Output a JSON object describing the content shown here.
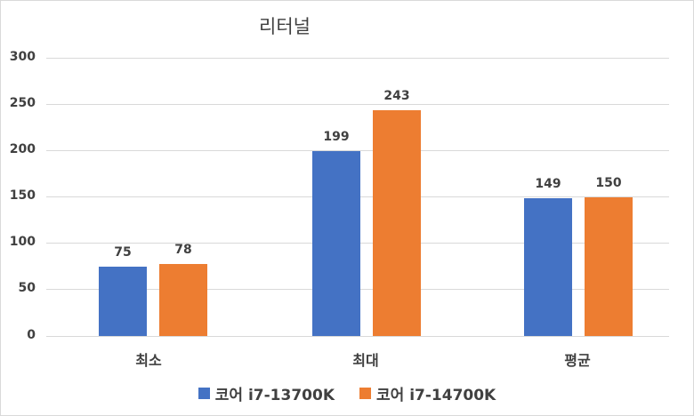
{
  "chart_data": {
    "type": "bar",
    "title": "리터널",
    "categories": [
      "최소",
      "최대",
      "평균"
    ],
    "series": [
      {
        "name": "코어 i7-13700K",
        "color": "#4472c4",
        "values": [
          75,
          199,
          149
        ]
      },
      {
        "name": "코어 i7-14700K",
        "color": "#ed7d31",
        "values": [
          78,
          243,
          150
        ]
      }
    ],
    "xlabel": "",
    "ylabel": "",
    "ylim": [
      0,
      300
    ],
    "yticks": [
      "0",
      "50",
      "100",
      "150",
      "200",
      "250",
      "300"
    ],
    "grid": true,
    "legend_position": "bottom",
    "data_labels": true
  }
}
